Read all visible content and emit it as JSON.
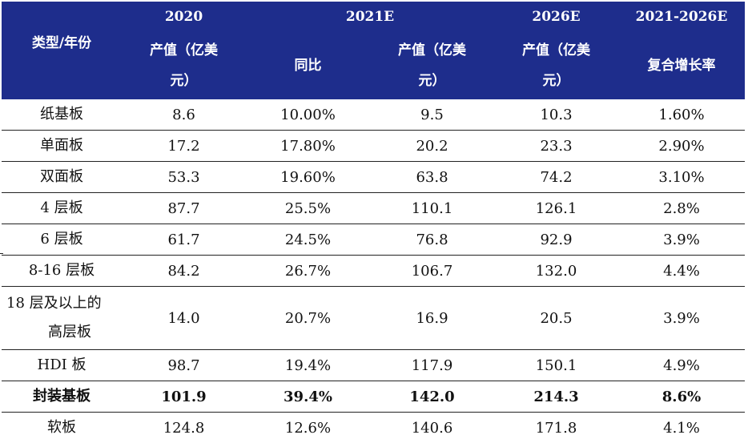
{
  "header": {
    "category_label": "类型/年份",
    "years": [
      "2020",
      "2021E",
      "2026E",
      "2021-2026E"
    ],
    "col_2020": [
      "产值（亿美",
      "元）"
    ],
    "col_yoy": "同比",
    "col_2021e": [
      "产值（亿美",
      "元）"
    ],
    "col_2026e": [
      "产值（亿美",
      "元）"
    ],
    "col_cagr": "复合增长率"
  },
  "rows": [
    {
      "type": "纸基板",
      "v2020": "8.6",
      "yoy": "10.00%",
      "v2021e": "9.5",
      "v2026e": "10.3",
      "cagr": "1.60%"
    },
    {
      "type": "单面板",
      "v2020": "17.2",
      "yoy": "17.80%",
      "v2021e": "20.2",
      "v2026e": "23.3",
      "cagr": "2.90%"
    },
    {
      "type": "双面板",
      "v2020": "53.3",
      "yoy": "19.60%",
      "v2021e": "63.8",
      "v2026e": "74.2",
      "cagr": "3.10%"
    },
    {
      "type": "4 层板",
      "v2020": "87.7",
      "yoy": "25.5%",
      "v2021e": "110.1",
      "v2026e": "126.1",
      "cagr": "2.8%"
    },
    {
      "type": "6 层板",
      "v2020": "61.7",
      "yoy": "24.5%",
      "v2021e": "76.8",
      "v2026e": "92.9",
      "cagr": "3.9%"
    },
    {
      "type": "8-16 层板",
      "v2020": "84.2",
      "yoy": "26.7%",
      "v2021e": "106.7",
      "v2026e": "132.0",
      "cagr": "4.4%"
    },
    {
      "type": "18 层及以上的高层板",
      "v2020": "14.0",
      "yoy": "20.7%",
      "v2021e": "16.9",
      "v2026e": "20.5",
      "cagr": "3.9%"
    },
    {
      "type": "HDI 板",
      "v2020": "98.7",
      "yoy": "19.4%",
      "v2021e": "117.9",
      "v2026e": "150.1",
      "cagr": "4.9%"
    },
    {
      "type": "封装基板",
      "v2020": "101.9",
      "yoy": "39.4%",
      "v2021e": "142.0",
      "v2026e": "214.3",
      "cagr": "8.6%"
    },
    {
      "type": "软板",
      "v2020": "124.8",
      "yoy": "12.6%",
      "v2021e": "140.6",
      "v2026e": "171.8",
      "cagr": "4.1%"
    }
  ]
}
